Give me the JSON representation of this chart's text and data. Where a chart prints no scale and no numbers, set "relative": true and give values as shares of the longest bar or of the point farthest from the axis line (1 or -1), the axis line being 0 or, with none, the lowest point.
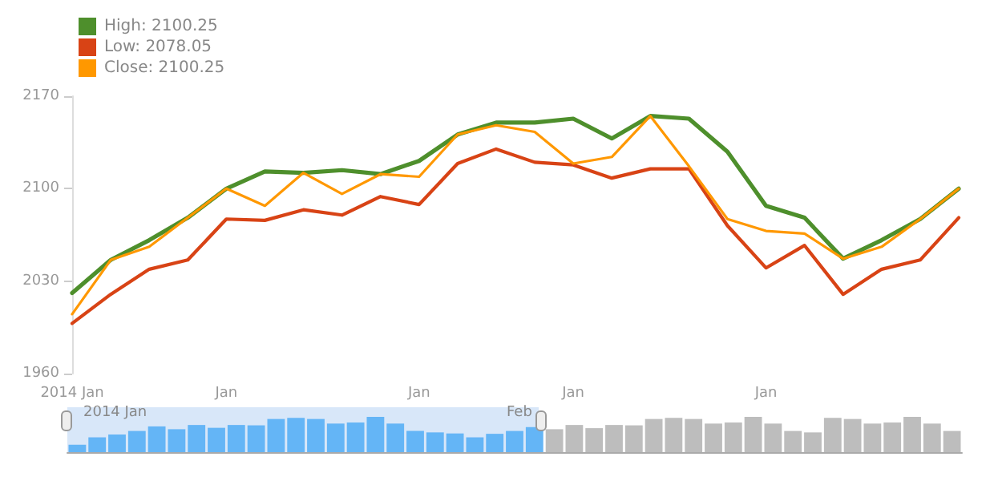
{
  "chart_data": [
    {
      "type": "line",
      "categories": [
        "2014 Jan",
        null,
        null,
        null,
        "Jan",
        null,
        null,
        null,
        null,
        "Jan",
        null,
        null,
        null,
        "Jan",
        null,
        null,
        null,
        null,
        "Jan",
        null,
        null,
        null,
        null,
        null
      ],
      "series": [
        {
          "name": "High: 2100.25",
          "color": "#4e8f2c",
          "values": [
            2021,
            2046,
            2061,
            2078,
            2100,
            2113,
            2112,
            2114,
            2111,
            2121,
            2141,
            2150,
            2150,
            2153,
            2138,
            2155,
            2153,
            2128,
            2087,
            2078,
            2047,
            2061,
            2077,
            2100
          ]
        },
        {
          "name": "Low: 2078.05",
          "color": "#d84315",
          "values": [
            1998,
            2020,
            2039,
            2046,
            2077,
            2076,
            2084,
            2080,
            2094,
            2088,
            2119,
            2130,
            2120,
            2118,
            2108,
            2115,
            2115,
            2072,
            2040,
            2057,
            2020,
            2039,
            2046,
            2078
          ]
        },
        {
          "name": "Close: 2100.25",
          "color": "#ff9800",
          "values": [
            2005,
            2046,
            2056,
            2078,
            2100,
            2087,
            2112,
            2096,
            2111,
            2109,
            2141,
            2148,
            2143,
            2119,
            2124,
            2155,
            2117,
            2077,
            2068,
            2066,
            2047,
            2056,
            2077,
            2100
          ]
        }
      ],
      "ylim": [
        1960,
        2170
      ],
      "yticks": [
        1960,
        2030,
        2100,
        2170
      ],
      "grid": false,
      "legend": "top left",
      "marker": "none",
      "line_style": "solid"
    },
    {
      "type": "bar",
      "relative": true,
      "categories": [
        null,
        null,
        null,
        null,
        null,
        null,
        null,
        null,
        null,
        null,
        null,
        null,
        null,
        null,
        null,
        null,
        null,
        null,
        null,
        null,
        null,
        null,
        null,
        null,
        null,
        null,
        null,
        null,
        null,
        null,
        null,
        null,
        null,
        null,
        null,
        null,
        null,
        null,
        null,
        null,
        null,
        null,
        null,
        null,
        null
      ],
      "annotations": [
        "2014 Jan",
        "Feb"
      ],
      "values": [
        0.21,
        0.42,
        0.5,
        0.6,
        0.73,
        0.65,
        0.77,
        0.69,
        0.77,
        0.76,
        0.94,
        0.97,
        0.94,
        0.81,
        0.84,
        1,
        0.81,
        0.6,
        0.56,
        0.53,
        0.42,
        0.52,
        0.6,
        0.71,
        0.65,
        0.77,
        0.68,
        0.77,
        0.76,
        0.94,
        0.97,
        0.94,
        0.81,
        0.84,
        1,
        0.81,
        0.6,
        0.56,
        0.97,
        0.94,
        0.81,
        0.84,
        1,
        0.81,
        0.6
      ],
      "colors": [
        "#64b5f6",
        "#64b5f6",
        "#64b5f6",
        "#64b5f6",
        "#64b5f6",
        "#64b5f6",
        "#64b5f6",
        "#64b5f6",
        "#64b5f6",
        "#64b5f6",
        "#64b5f6",
        "#64b5f6",
        "#64b5f6",
        "#64b5f6",
        "#64b5f6",
        "#64b5f6",
        "#64b5f6",
        "#64b5f6",
        "#64b5f6",
        "#64b5f6",
        "#64b5f6",
        "#64b5f6",
        "#64b5f6",
        "#64b5f6",
        "#bdbdbd",
        "#bdbdbd",
        "#bdbdbd",
        "#bdbdbd",
        "#bdbdbd",
        "#bdbdbd",
        "#bdbdbd",
        "#bdbdbd",
        "#bdbdbd",
        "#bdbdbd",
        "#bdbdbd",
        "#bdbdbd",
        "#bdbdbd",
        "#bdbdbd",
        "#bdbdbd",
        "#bdbdbd",
        "#bdbdbd",
        "#bdbdbd",
        "#bdbdbd",
        "#bdbdbd",
        "#bdbdbd"
      ]
    }
  ]
}
